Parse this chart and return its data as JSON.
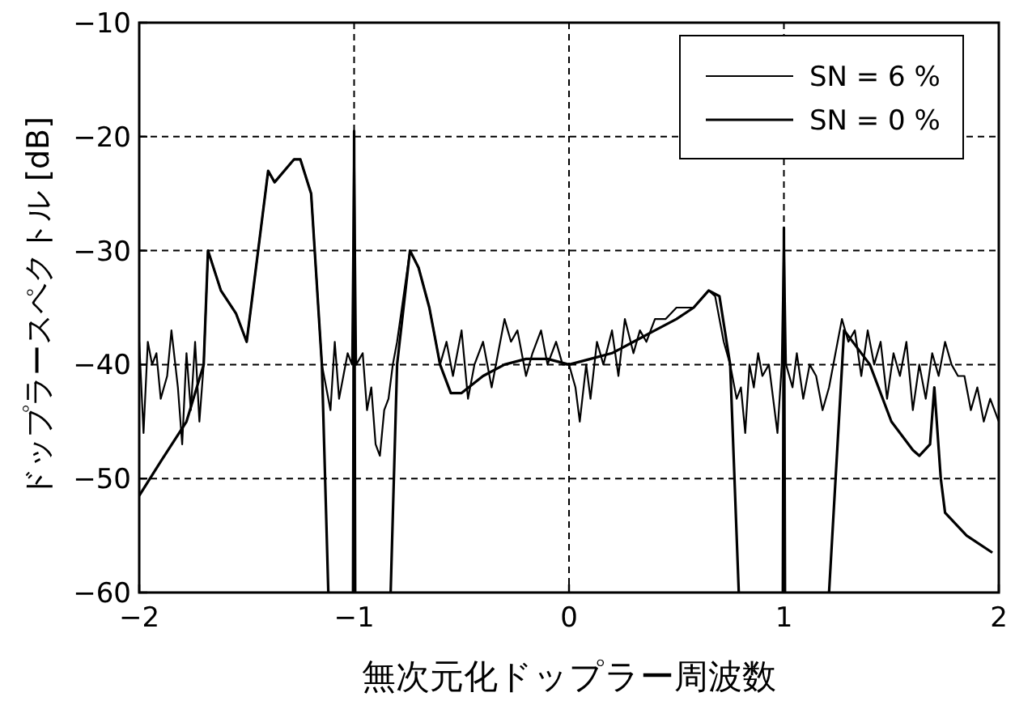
{
  "chart_data": {
    "type": "line",
    "xlabel": "無次元化ドップラー周波数",
    "ylabel": "ドップラースペクトル [dB]",
    "xlim": [
      -2,
      2
    ],
    "ylim": [
      -60,
      -10
    ],
    "xticks": [
      -2,
      -1,
      0,
      1,
      2
    ],
    "yticks": [
      -60,
      -50,
      -40,
      -30,
      -20,
      -10
    ],
    "grid": true,
    "legend": "top right",
    "series": [
      {
        "name": "SN = 6 %",
        "color": "#000000",
        "x": [
          -2,
          -1.98,
          -1.96,
          -1.94,
          -1.92,
          -1.9,
          -1.87,
          -1.85,
          -1.82,
          -1.8,
          -1.78,
          -1.76,
          -1.74,
          -1.72,
          -1.7,
          -1.68,
          -1.62,
          -1.55,
          -1.5,
          -1.4,
          -1.37,
          -1.28,
          -1.25,
          -1.2,
          -1.15,
          -1.13,
          -1.11,
          -1.09,
          -1.07,
          -1.05,
          -1.03,
          -1.01,
          -1.0,
          -0.99,
          -0.96,
          -0.94,
          -0.92,
          -0.9,
          -0.88,
          -0.86,
          -0.84,
          -0.82,
          -0.8,
          -0.74,
          -0.7,
          -0.65,
          -0.6,
          -0.57,
          -0.54,
          -0.5,
          -0.47,
          -0.44,
          -0.4,
          -0.36,
          -0.33,
          -0.3,
          -0.27,
          -0.24,
          -0.2,
          -0.17,
          -0.13,
          -0.1,
          -0.06,
          -0.03,
          0,
          0.03,
          0.05,
          0.08,
          0.1,
          0.13,
          0.16,
          0.2,
          0.23,
          0.26,
          0.3,
          0.33,
          0.36,
          0.4,
          0.45,
          0.5,
          0.58,
          0.65,
          0.68,
          0.72,
          0.75,
          0.78,
          0.8,
          0.82,
          0.84,
          0.86,
          0.88,
          0.9,
          0.93,
          0.95,
          0.97,
          0.99,
          1.0,
          1.01,
          1.04,
          1.06,
          1.09,
          1.12,
          1.15,
          1.18,
          1.21,
          1.24,
          1.27,
          1.3,
          1.33,
          1.36,
          1.39,
          1.42,
          1.45,
          1.48,
          1.51,
          1.54,
          1.57,
          1.6,
          1.63,
          1.66,
          1.69,
          1.72,
          1.75,
          1.78,
          1.81,
          1.84,
          1.87,
          1.9,
          1.93,
          1.96,
          2
        ],
        "values": [
          -38,
          -46,
          -38,
          -40,
          -39,
          -43,
          -41,
          -37,
          -42,
          -47,
          -39,
          -44,
          -38,
          -45,
          -40,
          -30,
          -33.5,
          -35.5,
          -38,
          -23,
          -24,
          -22,
          -22,
          -25,
          -40,
          -42,
          -44,
          -38,
          -43,
          -41,
          -39,
          -40,
          -19.5,
          -40,
          -39,
          -44,
          -42,
          -47,
          -48,
          -44,
          -43,
          -40,
          -38,
          -30,
          -31.5,
          -35,
          -40,
          -38,
          -41,
          -37,
          -43,
          -40,
          -38,
          -42,
          -39,
          -36,
          -38,
          -37,
          -41,
          -39,
          -37,
          -40,
          -38,
          -40,
          -40,
          -42,
          -45,
          -40,
          -43,
          -38,
          -40,
          -37,
          -41,
          -36,
          -39,
          -37,
          -38,
          -36,
          -36,
          -35,
          -35,
          -33.5,
          -34,
          -38,
          -40,
          -43,
          -42,
          -46,
          -40,
          -42,
          -39,
          -41,
          -40,
          -43,
          -46,
          -40,
          -28,
          -40,
          -42,
          -39,
          -43,
          -40,
          -41,
          -44,
          -42,
          -39,
          -36,
          -38,
          -37,
          -41,
          -37,
          -40,
          -38,
          -43,
          -39,
          -41,
          -38,
          -44,
          -40,
          -43,
          -39,
          -41,
          -38,
          -40,
          -41,
          -41,
          -44,
          -42,
          -45,
          -43,
          -45
        ]
      },
      {
        "name": "SN = 0 %",
        "color": "#000000",
        "x": [
          -2,
          -1.9,
          -1.78,
          -1.7,
          -1.68,
          -1.62,
          -1.55,
          -1.5,
          -1.4,
          -1.37,
          -1.28,
          -1.25,
          -1.2,
          -1.15,
          -1.12,
          -1.11,
          -1.005,
          -1.0,
          -0.995,
          -0.9,
          -0.83,
          -0.8,
          -0.74,
          -0.7,
          -0.65,
          -0.6,
          -0.55,
          -0.5,
          -0.4,
          -0.3,
          -0.2,
          -0.1,
          0,
          0.1,
          0.2,
          0.3,
          0.4,
          0.5,
          0.58,
          0.65,
          0.7,
          0.75,
          0.79,
          0.8,
          0.995,
          1.0,
          1.005,
          1.1,
          1.21,
          1.28,
          1.4,
          1.5,
          1.6,
          1.63,
          1.68,
          1.7,
          1.73,
          1.75,
          1.85,
          1.97
        ],
        "values": [
          -51.5,
          -48.5,
          -45,
          -40,
          -30,
          -33.5,
          -35.5,
          -38,
          -23,
          -24,
          -22,
          -22,
          -25,
          -40,
          -60,
          null,
          -60,
          -19.5,
          -60,
          null,
          -60,
          -40,
          -30,
          -31.5,
          -35,
          -40,
          -42.5,
          -42.5,
          -41,
          -40,
          -39.5,
          -39.5,
          -40,
          -39.5,
          -39,
          -38,
          -37,
          -36,
          -35,
          -33.5,
          -34,
          -40,
          -60,
          null,
          -60,
          -28,
          -60,
          null,
          -60,
          -37,
          -40,
          -45,
          -47.5,
          -48,
          -47,
          -42,
          -50,
          -53,
          -55,
          -56.5
        ]
      }
    ]
  }
}
